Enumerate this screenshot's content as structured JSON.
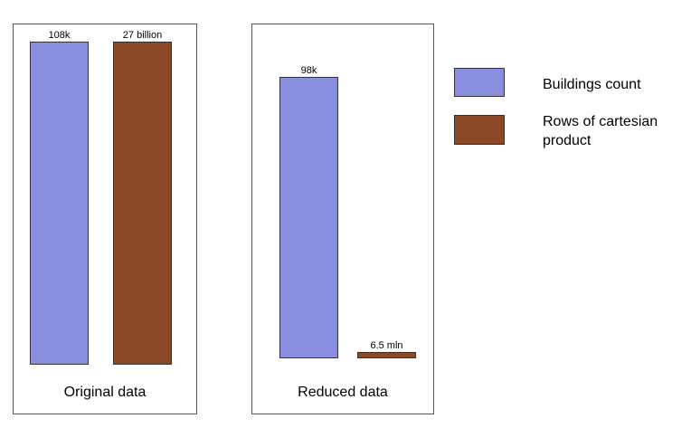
{
  "chart_data": {
    "type": "bar",
    "series": [
      {
        "name": "Buildings count",
        "color": "#8a8ee0"
      },
      {
        "name": "Rows of cartesian product",
        "color": "#8b4827"
      }
    ],
    "panels": [
      {
        "title": "Original data",
        "bars": [
          {
            "series": "Buildings count",
            "label": "108k"
          },
          {
            "series": "Rows of cartesian product",
            "label": "27 billion"
          }
        ]
      },
      {
        "title": "Reduced data",
        "bars": [
          {
            "series": "Buildings count",
            "label": "98k"
          },
          {
            "series": "Rows of cartesian product",
            "label": "6.5 mln"
          }
        ]
      }
    ],
    "legend": {
      "position": "right"
    }
  },
  "colors": {
    "buildings": "#8a8ee0",
    "cartesian": "#8b4827",
    "border": "#555555"
  }
}
